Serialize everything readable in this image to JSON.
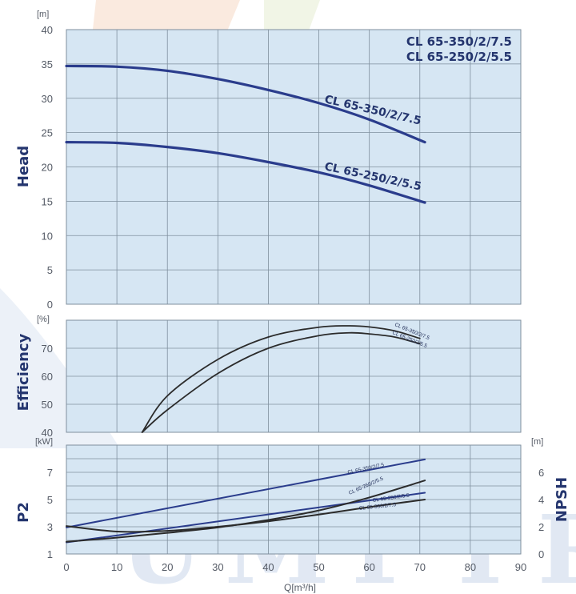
{
  "models": [
    "CL 65-350/2/7.5",
    "CL 65-250/2/5.5"
  ],
  "watermark": "UMPTR",
  "x_axis": {
    "label": "Q[m³/h]",
    "ticks": [
      "0",
      "10",
      "20",
      "30",
      "40",
      "50",
      "60",
      "70",
      "80",
      "90"
    ],
    "xlim": [
      0,
      90
    ]
  },
  "colors": {
    "blue_curve": "#2a3c8c",
    "black_curve": "#2b2b2b",
    "panel_fill": "#d6e6f3",
    "grid": "#7f8f9e",
    "label": "#24356e"
  },
  "chart_data": [
    {
      "type": "line",
      "panel": "head",
      "ylabel": "Head",
      "yunit": "[m]",
      "ylim": [
        0,
        40
      ],
      "yticks": [
        "0",
        "5",
        "10",
        "15",
        "20",
        "25",
        "30",
        "35",
        "40"
      ],
      "grid": true,
      "series": [
        {
          "name": "CL 65-350/2/7.5",
          "x": [
            0,
            10,
            20,
            30,
            40,
            50,
            60,
            71
          ],
          "y": [
            34.7,
            34.6,
            34.0,
            32.8,
            31.2,
            29.3,
            26.9,
            23.6
          ]
        },
        {
          "name": "CL 65-250/2/5.5",
          "x": [
            0,
            10,
            20,
            30,
            40,
            50,
            60,
            71
          ],
          "y": [
            23.6,
            23.5,
            22.9,
            22.0,
            20.7,
            19.2,
            17.3,
            14.8
          ]
        }
      ]
    },
    {
      "type": "line",
      "panel": "efficiency",
      "ylabel": "Efficiency",
      "yunit": "[%]",
      "ylim": [
        40,
        80
      ],
      "yticks": [
        "40",
        "50",
        "60",
        "70"
      ],
      "grid": true,
      "series": [
        {
          "name": "CL 65-350/2/7.5",
          "x": [
            15,
            20,
            30,
            40,
            50,
            56,
            60,
            65,
            70
          ],
          "y": [
            40,
            53,
            66,
            74,
            77.5,
            78,
            77.6,
            76.2,
            73.5
          ]
        },
        {
          "name": "CL 65-250/2/5.5",
          "x": [
            15,
            20,
            30,
            40,
            50,
            56,
            60,
            65,
            70
          ],
          "y": [
            40,
            48,
            61,
            70,
            74.5,
            75.5,
            75.1,
            74,
            71.6
          ]
        }
      ]
    },
    {
      "type": "line",
      "panel": "power",
      "ylabel": "P2",
      "yunit": "[kW]",
      "ylim": [
        1,
        9
      ],
      "yticks": [
        "1",
        "3",
        "5",
        "7"
      ],
      "y2label": "NPSH",
      "y2unit": "[m]",
      "y2lim": [
        0,
        8
      ],
      "y2ticks": [
        "0",
        "2",
        "4",
        "6"
      ],
      "grid": true,
      "series": [
        {
          "name": "CL 65-350/2/7.5",
          "axis": "P2",
          "x": [
            0,
            71
          ],
          "y": [
            2.95,
            7.95
          ]
        },
        {
          "name": "CL 65-250/2/5.5",
          "axis": "P2",
          "x": [
            0,
            71
          ],
          "y": [
            1.85,
            5.5
          ]
        },
        {
          "name": "CL 65-250/2/5.5",
          "axis": "NPSH",
          "x": [
            0,
            10,
            20,
            30,
            40,
            50,
            60,
            71
          ],
          "y": [
            0.9,
            1.2,
            1.55,
            1.95,
            2.5,
            3.2,
            4.15,
            5.4
          ]
        },
        {
          "name": "CL 65-350/2/7.5",
          "axis": "NPSH",
          "x": [
            0,
            10,
            20,
            30,
            40,
            50,
            60,
            71
          ],
          "y": [
            2.05,
            1.65,
            1.7,
            2.0,
            2.4,
            2.9,
            3.45,
            4.0
          ]
        }
      ]
    }
  ]
}
